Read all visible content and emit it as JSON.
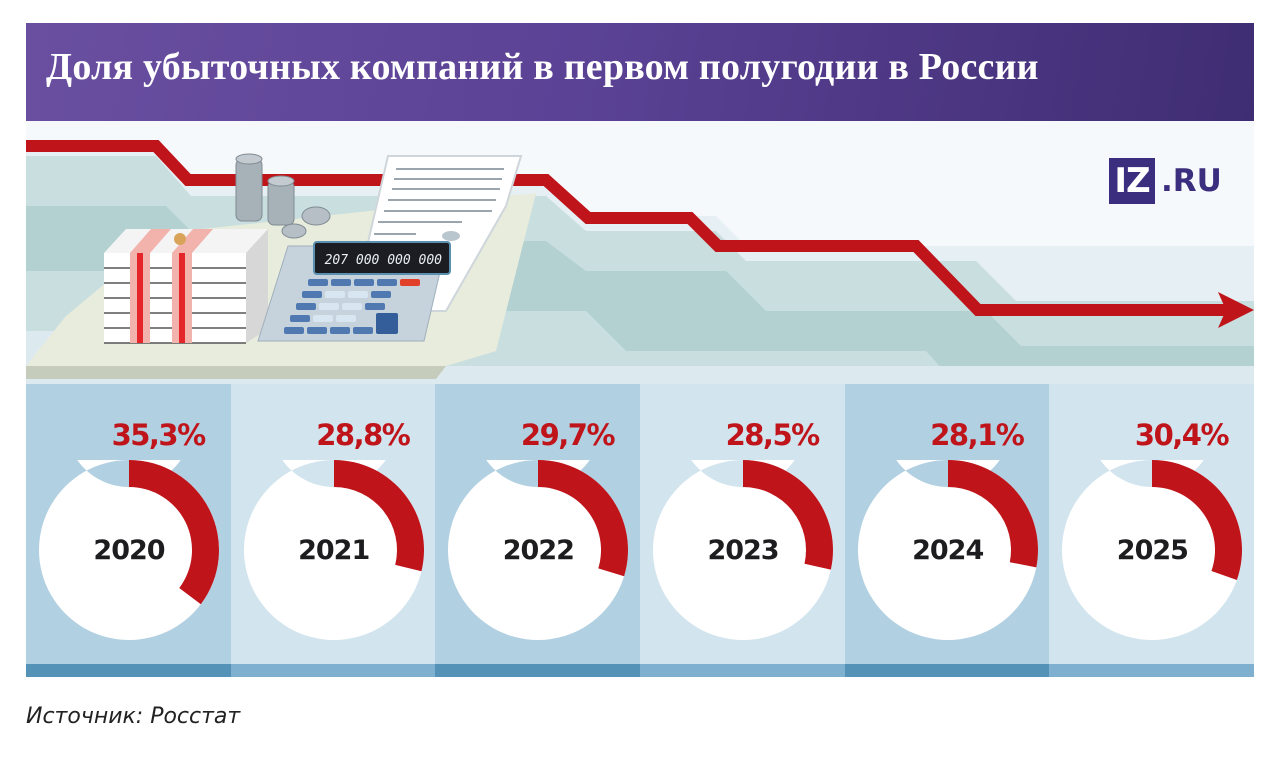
{
  "header": {
    "title": "Доля убыточных компаний в первом полугодии в России"
  },
  "logo": {
    "box_text": "IZ",
    "suffix": ".RU",
    "color": "#3b2e7e"
  },
  "illustration": {
    "calculator_display": "207 000 000 000"
  },
  "colors": {
    "accent_red": "#c0141b",
    "panel_dark": "#b1d0e1",
    "panel_light": "#d2e4ee",
    "header_purple": "#5b4295"
  },
  "panels": [
    {
      "year": "2020",
      "label": "35,3%",
      "value": 35.3
    },
    {
      "year": "2021",
      "label": "28,8%",
      "value": 28.8
    },
    {
      "year": "2022",
      "label": "29,7%",
      "value": 29.7
    },
    {
      "year": "2023",
      "label": "28,5%",
      "value": 28.5
    },
    {
      "year": "2024",
      "label": "28,1%",
      "value": 28.1
    },
    {
      "year": "2025",
      "label": "30,4%",
      "value": 30.4
    }
  ],
  "source": "Источник: Росстат",
  "chart_data": {
    "type": "pie",
    "subtype": "donut-series",
    "title": "Доля убыточных компаний в первом полугодии в России",
    "categories": [
      "2020",
      "2021",
      "2022",
      "2023",
      "2024",
      "2025"
    ],
    "values": [
      35.3,
      28.8,
      29.7,
      28.5,
      28.1,
      30.4
    ],
    "unit": "%",
    "source": "Источник: Росстат"
  }
}
